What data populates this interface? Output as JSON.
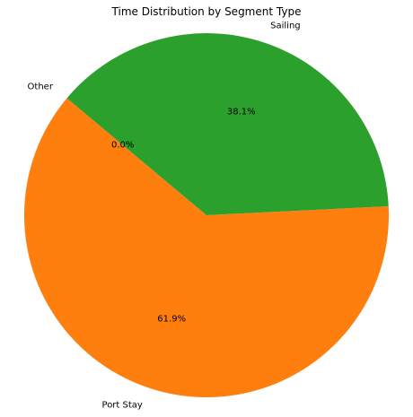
{
  "chart_data": {
    "type": "pie",
    "title": "Time Distribution by Segment Type",
    "start_angle_deg": 140,
    "direction": "counterclockwise",
    "slices": [
      {
        "label": "Other",
        "value": 0.0,
        "pct_label": "0.0%",
        "color": "#1f77b4"
      },
      {
        "label": "Port Stay",
        "value": 61.9,
        "pct_label": "61.9%",
        "color": "#ff7f0e"
      },
      {
        "label": "Sailing",
        "value": 38.1,
        "pct_label": "38.1%",
        "color": "#2ca02c"
      }
    ]
  }
}
